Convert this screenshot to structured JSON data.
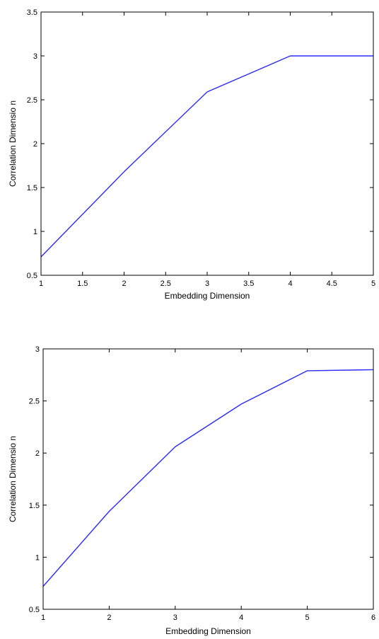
{
  "chart_data": [
    {
      "type": "line",
      "title": "",
      "xlabel": "Embedding Dimension",
      "ylabel": "Correlation Dimensio n",
      "xlim": [
        1,
        5
      ],
      "ylim": [
        0.5,
        3.5
      ],
      "xticks": [
        1,
        1.5,
        2,
        2.5,
        3,
        3.5,
        4,
        4.5,
        5
      ],
      "xtick_labels": [
        "1",
        "1.5",
        "2",
        "2.5",
        "3",
        "3.5",
        "4",
        "4.5",
        "5"
      ],
      "yticks": [
        0.5,
        1,
        1.5,
        2,
        2.5,
        3,
        3.5
      ],
      "ytick_labels": [
        "0.5",
        "1",
        "1.5",
        "2",
        "2.5",
        "3",
        "3.5"
      ],
      "grid": false,
      "series": [
        {
          "color": "#2b2bff",
          "x": [
            1,
            2,
            3,
            4,
            5
          ],
          "y": [
            0.71,
            1.68,
            2.59,
            3.0,
            3.0
          ]
        }
      ]
    },
    {
      "type": "line",
      "title": "",
      "xlabel": "Embedding Dimension",
      "ylabel": "Correlation Dimensio n",
      "xlim": [
        1,
        6
      ],
      "ylim": [
        0.5,
        3
      ],
      "xticks": [
        1,
        2,
        3,
        4,
        5,
        6
      ],
      "xtick_labels": [
        "1",
        "2",
        "3",
        "4",
        "5",
        "6"
      ],
      "yticks": [
        0.5,
        1,
        1.5,
        2,
        2.5,
        3
      ],
      "ytick_labels": [
        "0.5",
        "1",
        "1.5",
        "2",
        "2.5",
        "3"
      ],
      "grid": false,
      "series": [
        {
          "color": "#2b2bff",
          "x": [
            1,
            2,
            3,
            4,
            5,
            6
          ],
          "y": [
            0.72,
            1.44,
            2.06,
            2.47,
            2.79,
            2.8
          ]
        }
      ]
    }
  ]
}
